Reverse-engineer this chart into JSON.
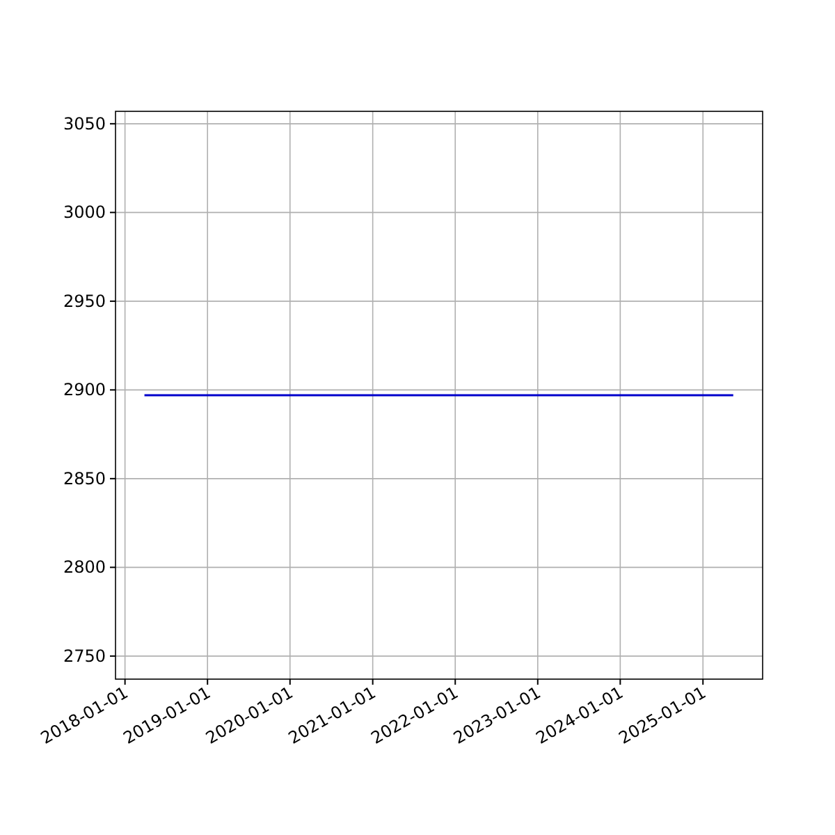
{
  "chart_data": {
    "type": "line",
    "x": [
      "2018-03-28",
      "2025-05-15"
    ],
    "series": [
      {
        "color": "#0000cc",
        "values": [
          2897,
          2897
        ]
      }
    ],
    "xlim": [
      "2017-11-20",
      "2025-09-22"
    ],
    "xticks": [
      "2018-01-01",
      "2019-01-01",
      "2020-01-01",
      "2021-01-01",
      "2022-01-01",
      "2023-01-01",
      "2024-01-01",
      "2025-01-01"
    ],
    "ylim": [
      2737,
      3057
    ],
    "yticks": [
      2750,
      2800,
      2850,
      2900,
      2950,
      3000,
      3050
    ],
    "grid": true
  }
}
